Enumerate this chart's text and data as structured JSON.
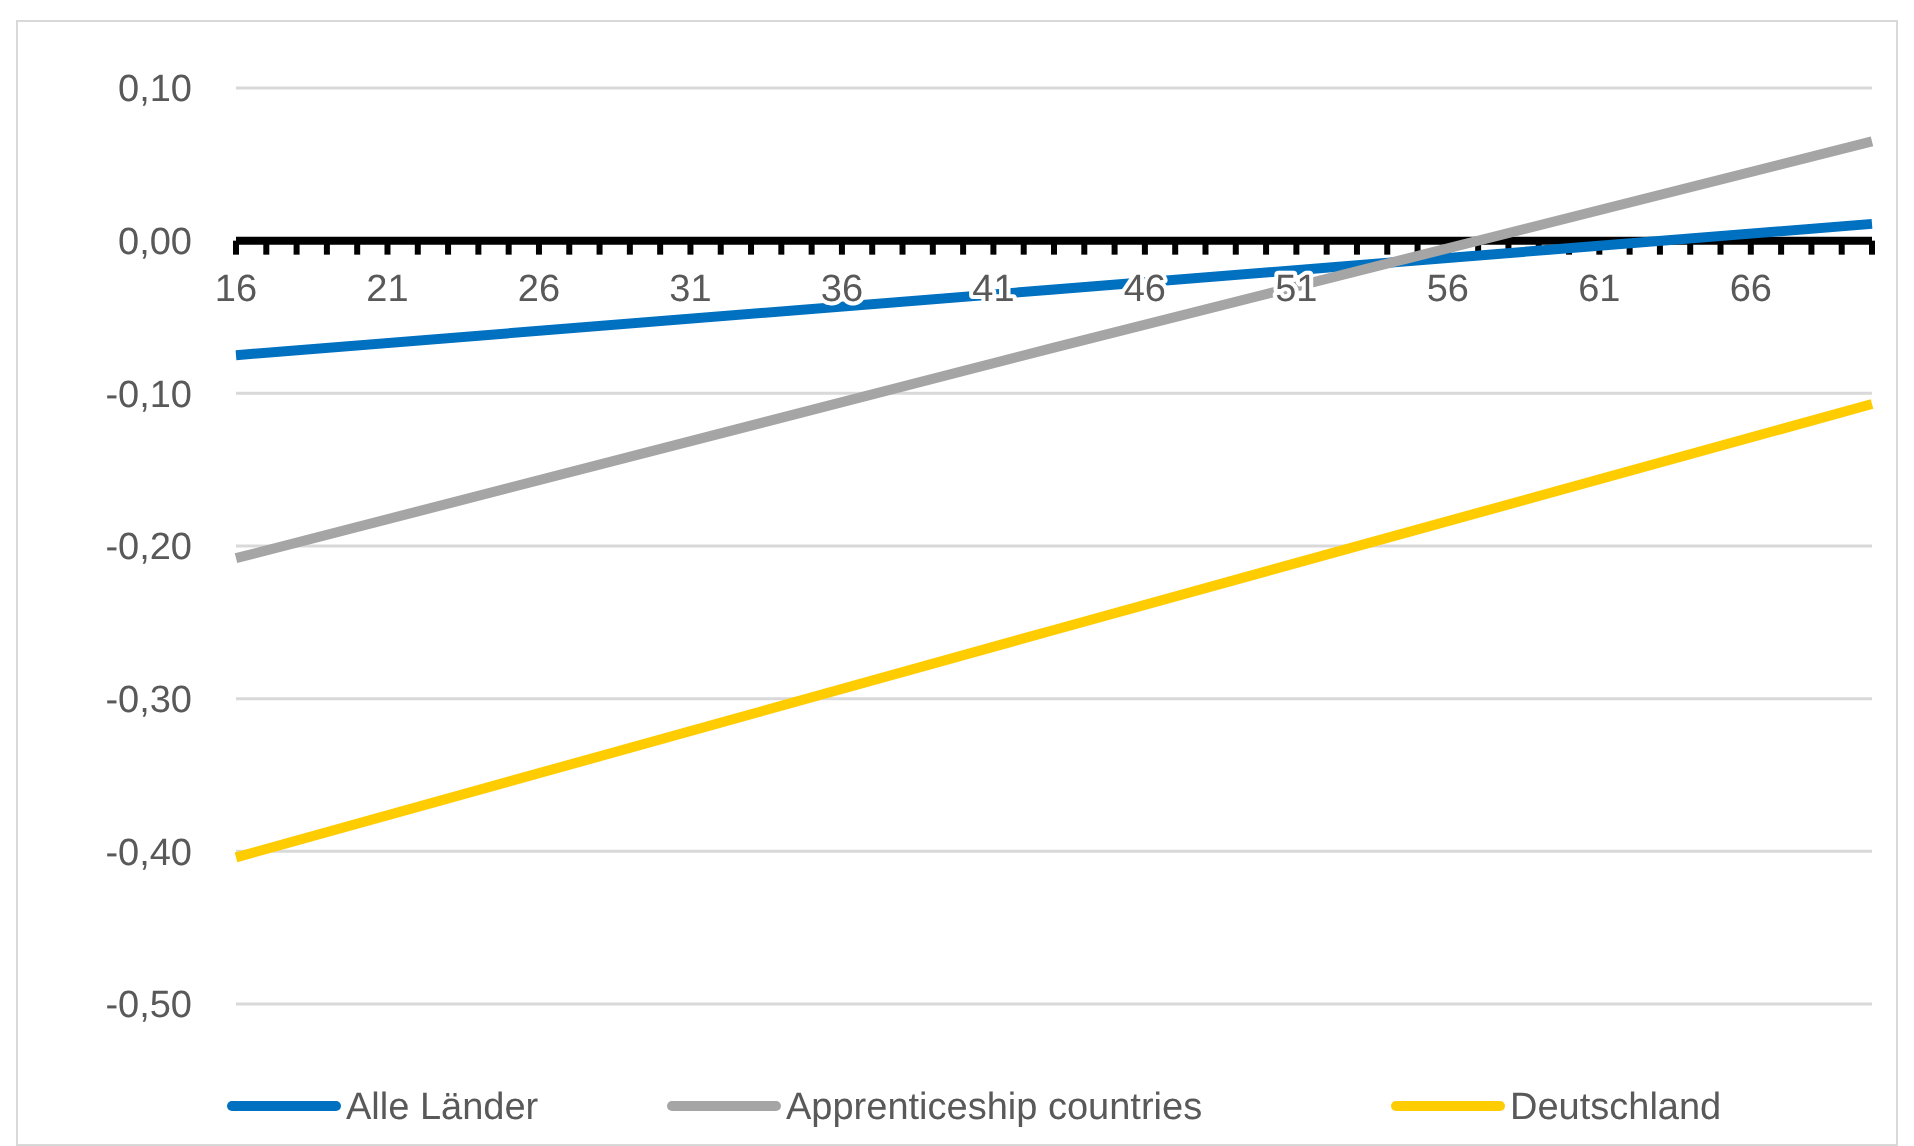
{
  "chart_data": {
    "type": "line",
    "x": [
      16,
      43,
      70
    ],
    "xlim": [
      16,
      70
    ],
    "xticks": [
      16,
      21,
      26,
      31,
      36,
      41,
      46,
      51,
      56,
      61,
      66
    ],
    "ylim": [
      -0.5,
      0.1
    ],
    "yticks": [
      {
        "value": 0.1,
        "label": "0,10"
      },
      {
        "value": 0,
        "label": "0,00"
      },
      {
        "value": -0.1,
        "label": "-0,10"
      },
      {
        "value": -0.2,
        "label": "-0,20"
      },
      {
        "value": -0.3,
        "label": "-0,30"
      },
      {
        "value": -0.4,
        "label": "-0,40"
      },
      {
        "value": -0.5,
        "label": "-0,50"
      }
    ],
    "grid": "y",
    "legend": "bottom",
    "marker": "none",
    "line_style": "solid",
    "series": [
      {
        "name": "Alle Länder",
        "color": "#0070c0",
        "values": [
          -0.075,
          -0.032,
          0.011
        ]
      },
      {
        "name": "Apprenticeship countries",
        "color": "#a5a5a5",
        "values": [
          -0.208,
          -0.07,
          0.065
        ]
      },
      {
        "name": "Deutschland",
        "color": "#ffcc00",
        "values": [
          -0.404,
          -0.255,
          -0.107
        ]
      }
    ]
  }
}
